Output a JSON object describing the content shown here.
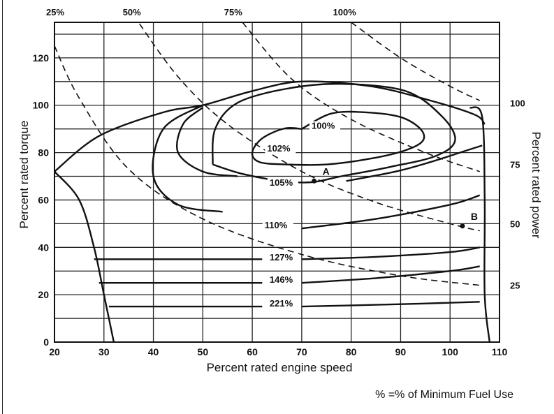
{
  "chart_data": {
    "type": "contour",
    "title": "",
    "xlabel": "Percent rated engine speed",
    "ylabel": "Percent rated torque",
    "y2label": "Percent rated power",
    "xlim": [
      20,
      110
    ],
    "ylim": [
      0,
      135
    ],
    "xticks": [
      "20",
      "30",
      "40",
      "50",
      "60",
      "70",
      "80",
      "90",
      "100",
      "110"
    ],
    "yticks": [
      {
        "value": 0,
        "label": "0"
      },
      {
        "value": 20,
        "label": "20"
      },
      {
        "value": 40,
        "label": "40"
      },
      {
        "value": 60,
        "label": "60"
      },
      {
        "value": 80,
        "label": "80"
      },
      {
        "value": 100,
        "label": "100"
      },
      {
        "value": 120,
        "label": "120"
      }
    ],
    "grid": true,
    "note": "% =% of Minimum Fuel Use",
    "fuel_contours": [
      {
        "label": "100%",
        "label_at": [
          72,
          90
        ],
        "points": [
          [
            70,
            90
          ],
          [
            66.5,
            90.2
          ],
          [
            62,
            86
          ],
          [
            60,
            80
          ],
          [
            61.5,
            76
          ],
          [
            67,
            75
          ],
          [
            75,
            75
          ],
          [
            84,
            77.5
          ],
          [
            91,
            81
          ],
          [
            94.5,
            85
          ],
          [
            94,
            90
          ],
          [
            90,
            95
          ],
          [
            83,
            97
          ],
          [
            76,
            96.5
          ],
          [
            70,
            90
          ]
        ]
      },
      {
        "label": "102%",
        "label_at": [
          63,
          80.5
        ],
        "points": [
          [
            52,
            75
          ],
          [
            52.5,
            90
          ],
          [
            57,
            101
          ],
          [
            67,
            107
          ],
          [
            78,
            109
          ],
          [
            91,
            106
          ],
          [
            98.5,
            95
          ],
          [
            101,
            85
          ],
          [
            97,
            78.5
          ],
          [
            88,
            74
          ],
          [
            78,
            70
          ],
          [
            72,
            67.5
          ],
          [
            66,
            68
          ],
          [
            58,
            71
          ],
          [
            52,
            75
          ]
        ]
      },
      {
        "label": "105%",
        "label_at": [
          63.5,
          66
        ],
        "points": [
          [
            79,
            68
          ],
          [
            89,
            72
          ],
          [
            96,
            76
          ],
          [
            102,
            80
          ],
          [
            106.5,
            83
          ]
        ]
      },
      {
        "label": "110%",
        "label_at": [
          62.5,
          48
        ],
        "points": [
          [
            20,
            72
          ],
          [
            29,
            87
          ],
          [
            42,
            97
          ],
          [
            50,
            100
          ],
          [
            60,
            106
          ],
          [
            70,
            110
          ],
          [
            84,
            108
          ],
          [
            96,
            102
          ],
          [
            105,
            96
          ],
          [
            107,
            92
          ]
        ]
      },
      {
        "label": "127%",
        "label_at": [
          63.5,
          34.5
        ],
        "points": [
          [
            28,
            35
          ],
          [
            62,
            35
          ]
        ]
      },
      {
        "label": "146%",
        "label_at": [
          63.5,
          25
        ],
        "points": [
          [
            29,
            25
          ],
          [
            62,
            25
          ]
        ]
      },
      {
        "label": "221%",
        "label_at": [
          63.5,
          15
        ],
        "points": [
          [
            31,
            15
          ],
          [
            62,
            15
          ]
        ]
      }
    ],
    "power_curves": [
      {
        "label": "25%",
        "points": [
          [
            20,
            125
          ],
          [
            25,
            103
          ],
          [
            35,
            73
          ],
          [
            50,
            52
          ],
          [
            70,
            37
          ],
          [
            90,
            28
          ],
          [
            106,
            24
          ]
        ]
      },
      {
        "label": "50%",
        "points": [
          [
            36,
            138
          ],
          [
            45,
            112
          ],
          [
            55,
            92
          ],
          [
            70,
            72
          ],
          [
            85,
            59
          ],
          [
            100,
            50
          ],
          [
            106,
            47
          ]
        ]
      },
      {
        "label": "75%",
        "points": [
          [
            58,
            135
          ],
          [
            68,
            111
          ],
          [
            80,
            94
          ],
          [
            95,
            80
          ],
          [
            106,
            72
          ]
        ]
      },
      {
        "label": "100%",
        "points": [
          [
            80,
            135
          ],
          [
            90,
            120
          ],
          [
            100,
            108
          ],
          [
            106,
            102
          ]
        ]
      }
    ],
    "power_right_labels": [
      {
        "label": "100",
        "y": 101
      },
      {
        "label": "75",
        "y": 75
      },
      {
        "label": "50",
        "y": 50
      },
      {
        "label": "25",
        "y": 24
      }
    ],
    "points": [
      {
        "label": "A",
        "x": 72.5,
        "y": 68
      },
      {
        "label": "B",
        "x": 102.5,
        "y": 49
      }
    ]
  }
}
